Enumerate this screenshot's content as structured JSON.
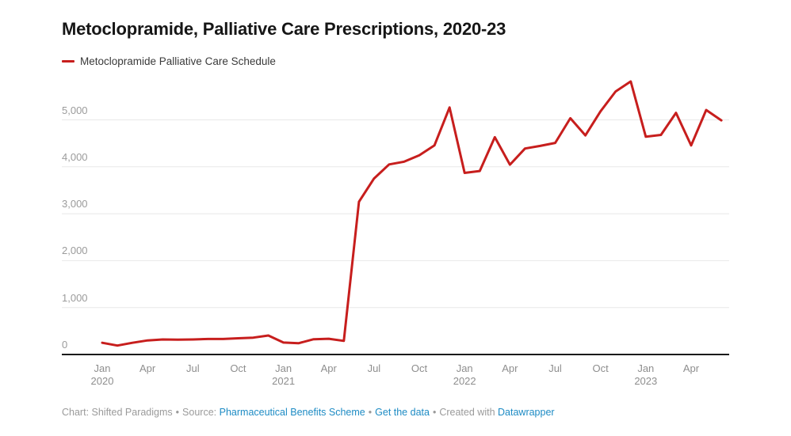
{
  "header": {
    "title": "Metoclopramide, Palliative Care Prescriptions, 2020-23"
  },
  "legend": {
    "label": "Metoclopramide Palliative Care Schedule",
    "color": "#c71e1d"
  },
  "footer": {
    "byline": "Chart: Shifted Paradigms",
    "sep": "•",
    "source_label": "Source:",
    "source_link": "Pharmaceutical Benefits Scheme",
    "get_data_link": "Get the data",
    "created_with": "Created with",
    "creator_link": "Datawrapper",
    "link_color": "#1d8bc4"
  },
  "chart_data": {
    "type": "line",
    "title": "Metoclopramide, Palliative Care Prescriptions, 2020-23",
    "xlabel": "",
    "ylabel": "",
    "ylim": [
      0,
      6000
    ],
    "grid": true,
    "legend_position": "top-left",
    "line_color": "#c71e1d",
    "grid_color": "#e8e8e8",
    "axis_color": "#1a1a1a",
    "x": [
      "Jan 2020",
      "Feb 2020",
      "Mar 2020",
      "Apr 2020",
      "May 2020",
      "Jun 2020",
      "Jul 2020",
      "Aug 2020",
      "Sep 2020",
      "Oct 2020",
      "Nov 2020",
      "Dec 2020",
      "Jan 2021",
      "Feb 2021",
      "Mar 2021",
      "Apr 2021",
      "May 2021",
      "Jun 2021",
      "Jul 2021",
      "Aug 2021",
      "Sep 2021",
      "Oct 2021",
      "Nov 2021",
      "Dec 2021",
      "Jan 2022",
      "Feb 2022",
      "Mar 2022",
      "Apr 2022",
      "May 2022",
      "Jun 2022",
      "Jul 2022",
      "Aug 2022",
      "Sep 2022",
      "Oct 2022",
      "Nov 2022",
      "Dec 2022",
      "Jan 2023",
      "Feb 2023",
      "Mar 2023",
      "Apr 2023",
      "May 2023",
      "Jun 2023"
    ],
    "series": [
      {
        "name": "Metoclopramide Palliative Care Schedule",
        "values": [
          250,
          190,
          250,
          300,
          320,
          315,
          320,
          330,
          330,
          345,
          360,
          405,
          255,
          240,
          325,
          335,
          290,
          3255,
          3750,
          4050,
          4110,
          4245,
          4455,
          5265,
          3870,
          3910,
          4630,
          4045,
          4390,
          4445,
          4510,
          5035,
          4670,
          5180,
          5605,
          5820,
          4640,
          4680,
          5150,
          4455,
          5210,
          4990
        ]
      }
    ],
    "y_ticks": [
      {
        "value": 0,
        "label": "0"
      },
      {
        "value": 1000,
        "label": "1,000"
      },
      {
        "value": 2000,
        "label": "2,000"
      },
      {
        "value": 3000,
        "label": "3,000"
      },
      {
        "value": 4000,
        "label": "4,000"
      },
      {
        "value": 5000,
        "label": "5,000"
      }
    ],
    "x_ticks": [
      {
        "month_index": 0,
        "label": "Jan",
        "year": "2020"
      },
      {
        "month_index": 3,
        "label": "Apr"
      },
      {
        "month_index": 6,
        "label": "Jul"
      },
      {
        "month_index": 9,
        "label": "Oct"
      },
      {
        "month_index": 12,
        "label": "Jan",
        "year": "2021"
      },
      {
        "month_index": 15,
        "label": "Apr"
      },
      {
        "month_index": 18,
        "label": "Jul"
      },
      {
        "month_index": 21,
        "label": "Oct"
      },
      {
        "month_index": 24,
        "label": "Jan",
        "year": "2022"
      },
      {
        "month_index": 27,
        "label": "Apr"
      },
      {
        "month_index": 30,
        "label": "Jul"
      },
      {
        "month_index": 33,
        "label": "Oct"
      },
      {
        "month_index": 36,
        "label": "Jan",
        "year": "2023"
      },
      {
        "month_index": 39,
        "label": "Apr"
      }
    ]
  }
}
